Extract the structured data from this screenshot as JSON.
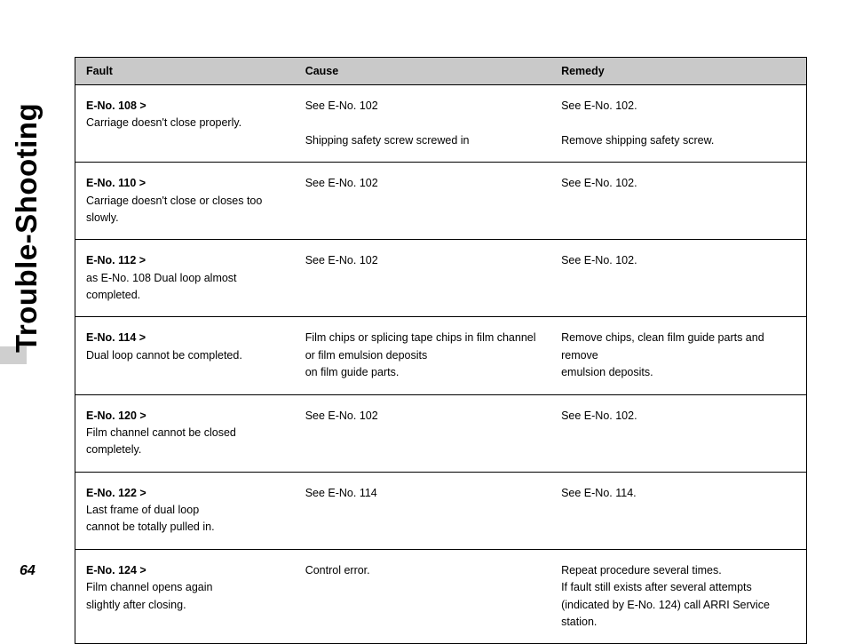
{
  "sideTitle": "Trouble-Shooting",
  "pageNumber": "64",
  "table": {
    "headers": {
      "fault": "Fault",
      "cause": "Cause",
      "remedy": "Remedy"
    },
    "rows": [
      {
        "faultCode": "E-No. 108 >",
        "faultDesc": "Carriage doesn't close properly.",
        "cause": "See E-No. 102\n\nShipping safety screw screwed in",
        "remedy": "See E-No. 102.\n\nRemove shipping safety screw."
      },
      {
        "faultCode": "E-No. 110 >",
        "faultDesc": "Carriage doesn't close or closes too slowly.",
        "cause": "See E-No. 102",
        "remedy": "See E-No. 102."
      },
      {
        "faultCode": "E-No. 112 >",
        "faultDesc": "as E-No. 108 Dual loop almost completed.",
        "cause": "See E-No. 102",
        "remedy": "See E-No. 102."
      },
      {
        "faultCode": "E-No. 114 >",
        "faultDesc": "Dual loop cannot be completed.",
        "cause": "Film chips or splicing tape chips in film channel\nor film emulsion deposits\non film guide parts.",
        "remedy": "Remove chips, clean film guide parts and remove\nemulsion deposits."
      },
      {
        "faultCode": "E-No. 120 >",
        "faultDesc": "Film channel cannot be closed completely.",
        "cause": "See E-No. 102",
        "remedy": "See E-No. 102."
      },
      {
        "faultCode": "E-No. 122 >",
        "faultDesc": "Last frame of dual loop\ncannot be totally pulled in.",
        "cause": "See E-No. 114",
        "remedy": "See E-No. 114."
      },
      {
        "faultCode": "E-No. 124 >",
        "faultDesc": "Film channel opens again\nslightly after closing.",
        "cause": "Control error.",
        "remedy": "Repeat procedure several times.\nIf fault still exists after several attempts\n(indicated by E-No. 124) call ARRI Service station."
      }
    ]
  }
}
